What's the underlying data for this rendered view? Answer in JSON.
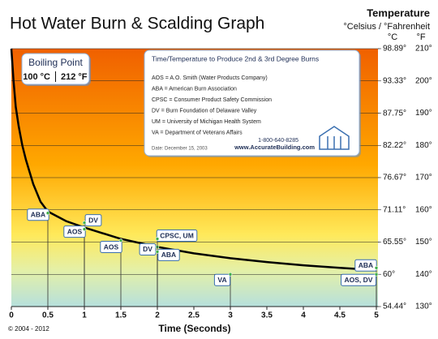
{
  "chart_data": {
    "type": "line",
    "title": "Hot Water Burn & Scalding Graph",
    "y_label": "Temperature",
    "y_units": "°Celsius / °Fahrenheit",
    "y2_unit": "°C",
    "y_unit": "°F",
    "x_label": "Time (Seconds)",
    "copyright": "© 2004 - 2012",
    "color": "#000000",
    "x": [
      0,
      0.03,
      0.06,
      0.1,
      0.15,
      0.2,
      0.3,
      0.4,
      0.5,
      0.75,
      1,
      1.5,
      2,
      2.5,
      3,
      3.5,
      4,
      4.5,
      5
    ],
    "values": [
      210,
      200,
      192,
      186,
      180,
      175.5,
      168,
      162.5,
      159.5,
      156.5,
      154.5,
      151,
      148.5,
      146.5,
      145,
      143.8,
      142.8,
      142,
      141.3
    ],
    "xlim": [
      0,
      5
    ],
    "xticks": [
      0,
      0.5,
      1,
      1.5,
      2,
      2.5,
      3,
      3.5,
      4,
      4.5,
      5
    ],
    "ylim": [
      130,
      210
    ],
    "yticks": [
      {
        "value": 130,
        "label": "130°"
      },
      {
        "value": 140,
        "label": "140°"
      },
      {
        "value": 150,
        "label": "150°"
      },
      {
        "value": 160,
        "label": "160°"
      },
      {
        "value": 170,
        "label": "170°"
      },
      {
        "value": 180,
        "label": "180°"
      },
      {
        "value": 190,
        "label": "190°"
      },
      {
        "value": 200,
        "label": "200°"
      },
      {
        "value": 210,
        "label": "210°"
      }
    ],
    "y2lim": [
      54.44,
      98.89
    ],
    "y2ticks": [
      {
        "value": 54.44,
        "label": "54.44°"
      },
      {
        "value": 60,
        "label": "60°"
      },
      {
        "value": 65.55,
        "label": "65.55°"
      },
      {
        "value": 71.11,
        "label": "71.11°"
      },
      {
        "value": 76.67,
        "label": "76.67°"
      },
      {
        "value": 82.22,
        "label": "82.22°"
      },
      {
        "value": 87.75,
        "label": "87.75°"
      },
      {
        "value": 93.33,
        "label": "93.33°"
      },
      {
        "value": 98.89,
        "label": "98.89°"
      }
    ],
    "grid": true,
    "markers": [
      {
        "label": "ABA",
        "x": 0.5,
        "y": 159
      },
      {
        "label": "DV",
        "x": 1,
        "y": 156
      },
      {
        "label": "AOS",
        "x": 1,
        "y": 154
      },
      {
        "label": "AOS",
        "x": 1.5,
        "y": 150.5
      },
      {
        "label": "DV",
        "x": 2,
        "y": 148.5
      },
      {
        "label": "CPSC, UM",
        "x": 2,
        "y": 151
      },
      {
        "label": "ABA",
        "x": 2,
        "y": 147
      },
      {
        "label": "VA",
        "x": 3,
        "y": 140
      },
      {
        "label": "ABA",
        "x": 5,
        "y": 142
      },
      {
        "label": "AOS, DV",
        "x": 5,
        "y": 140
      }
    ],
    "boiling_point": {
      "title": "Boiling Point",
      "celsius": "100 °C",
      "fahrenheit": "212 °F"
    },
    "info_box": {
      "title": "Time/Temperature to Produce 2nd & 3rd Degree Burns",
      "lines": [
        "AOS = A.O. Smith (Water Products Company)",
        "ABA = American Burn Association",
        "CPSC = Consumer Product Safety Commission",
        "DV = Burn Foundation of Delaware Valley",
        "UM = University of Michigan Health System",
        "VA = Department of Veterans Affairs"
      ],
      "phone": "1-800-640-8285",
      "url": "www.AccurateBuilding.com",
      "date": "Date: December 15, 2003"
    }
  }
}
